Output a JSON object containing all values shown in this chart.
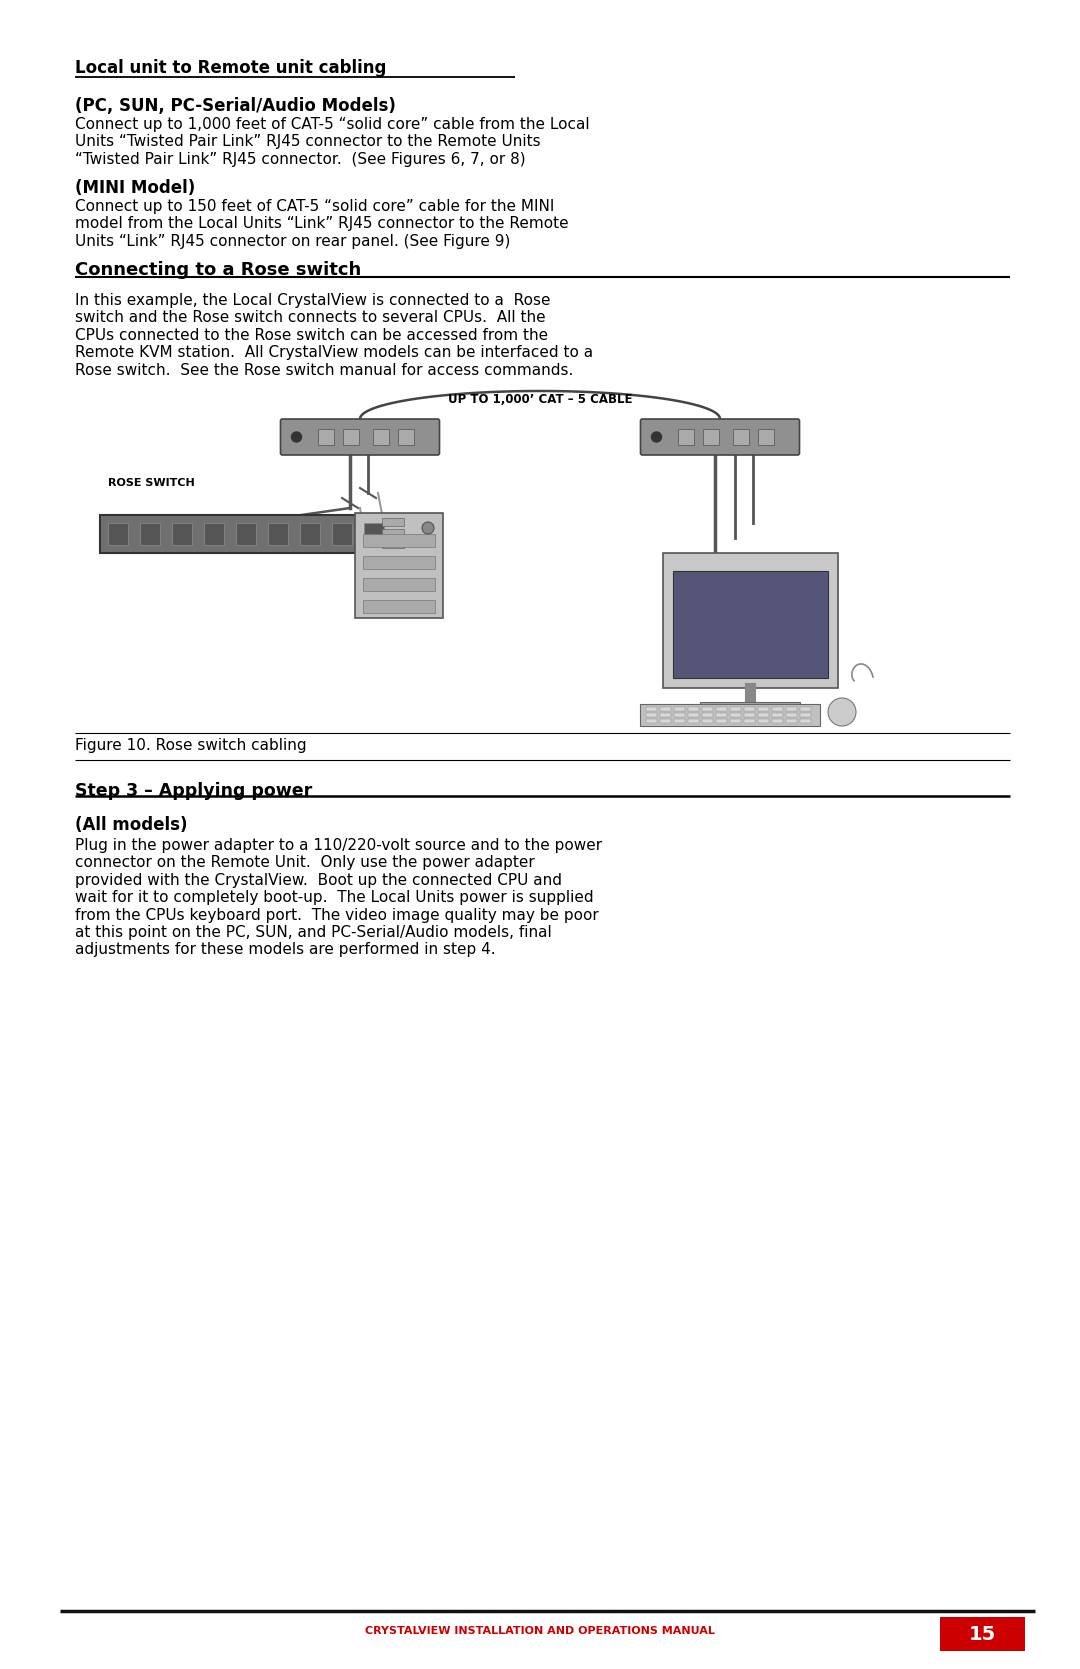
{
  "bg_color": "#ffffff",
  "text_color": "#000000",
  "red_color": "#cc0000",
  "footer_text": "CRYSTALVIEW INSTALLATION AND OPERATIONS MANUAL",
  "page_number": "15",
  "section1_heading": "Local unit to Remote unit cabling",
  "section1_sub1_heading": "(PC, SUN, PC-Serial/Audio Models)",
  "section1_sub1_body": "Connect up to 1,000 feet of CAT-5 “solid core” cable from the Local\nUnits “Twisted Pair Link” RJ45 connector to the Remote Units\n“Twisted Pair Link” RJ45 connector.  (See Figures 6, 7, or 8)",
  "section1_sub2_heading": "(MINI Model)",
  "section1_sub2_body": "Connect up to 150 feet of CAT-5 “solid core” cable for the MINI\nmodel from the Local Units “Link” RJ45 connector to the Remote\nUnits “Link” RJ45 connector on rear panel. (See Figure 9)",
  "section2_heading": "Connecting to a Rose switch",
  "section2_body": "In this example, the Local CrystalView is connected to a  Rose\nswitch and the Rose switch connects to several CPUs.  All the\nCPUs connected to the Rose switch can be accessed from the\nRemote KVM station.  All CrystalView models can be interfaced to a\nRose switch.  See the Rose switch manual for access commands.",
  "diagram_label_top": "UP TO 1,000’ CAT – 5 CABLE",
  "diagram_label_left": "ROSE SWITCH",
  "figure_caption": "Figure 10. Rose switch cabling",
  "section3_heading": "Step 3 – Applying power",
  "section3_sub_heading": "(All models)",
  "section3_body": "Plug in the power adapter to a 110/220-volt source and to the power\nconnector on the Remote Unit.  Only use the power adapter\nprovided with the CrystalView.  Boot up the connected CPU and\nwait for it to completely boot-up.  The Local Units power is supplied\nfrom the CPUs keyboard port.  The video image quality may be poor\nat this point on the PC, SUN, and PC-Serial/Audio models, final\nadjustments for these models are performed in step 4."
}
